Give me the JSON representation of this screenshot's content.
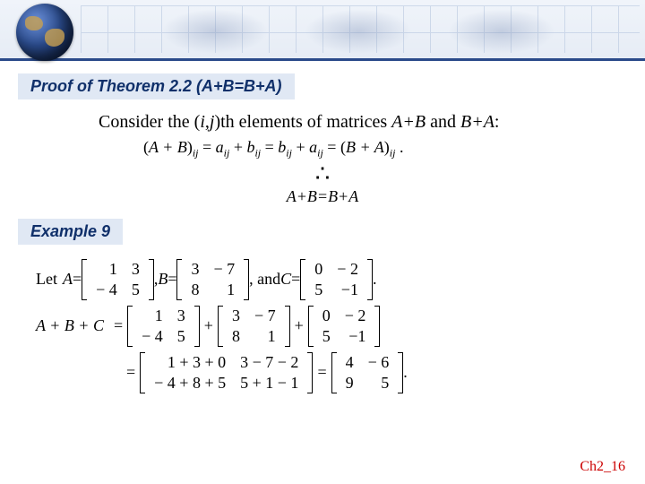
{
  "header": {
    "band_bg_top": "#f0f4fa",
    "band_bg_bottom": "#e6ecf5",
    "band_border": "#2a4a8a",
    "grid_color": "#b8c8e0"
  },
  "section1": {
    "heading": "Proof of Theorem 2.2 (A+B=B+A)",
    "intro_pre": "Consider the (",
    "intro_i": "i",
    "intro_comma": ",",
    "intro_j": "j",
    "intro_mid": ")th elements of matrices ",
    "intro_AB": "A+B",
    "intro_and": " and ",
    "intro_BA": "B+A",
    "intro_colon": ":",
    "proof_lhs_open": "(",
    "proof_lhs_AplusB": "A + B",
    "proof_lhs_close": ")",
    "proof_sub_ij": "ij",
    "proof_eq1": " = ",
    "proof_a": "a",
    "proof_plus1": " + ",
    "proof_b": "b",
    "proof_eq2": " = ",
    "proof_plus2": " + ",
    "proof_eq3": " = (",
    "proof_rhs_BplusA": "B + A",
    "proof_rhs_close": ")",
    "proof_period": " .",
    "therefore_symbol": "∴",
    "conclusion": "A+B=B+A"
  },
  "section2": {
    "heading": "Example 9",
    "let": "Let ",
    "A_label": "A",
    "eq": " = ",
    "comma_sp": ", ",
    "B_label": "B",
    "andC": ", and ",
    "C_label": "C",
    "period": ".",
    "A": [
      [
        "1",
        "3"
      ],
      [
        "− 4",
        "5"
      ]
    ],
    "B": [
      [
        "3",
        "− 7"
      ],
      [
        "8",
        "1"
      ]
    ],
    "C": [
      [
        "0",
        "− 2"
      ],
      [
        "5",
        "−1"
      ]
    ],
    "sum_label": "A + B + C",
    "plus": "+",
    "equals": "=",
    "step_mid": [
      [
        "1 + 3 + 0",
        "3 − 7 − 2"
      ],
      [
        "− 4 + 8 + 5",
        "5 + 1 − 1"
      ]
    ],
    "result": [
      [
        "4",
        "− 6"
      ],
      [
        "9",
        "5"
      ]
    ]
  },
  "footer": {
    "text": "Ch2_16",
    "color": "#cc0000"
  },
  "styles": {
    "heading_bg": "#e0e8f4",
    "heading_color": "#10306a",
    "heading_fontsize": 18,
    "body_fontsize": 20,
    "math_fontsize": 18
  }
}
